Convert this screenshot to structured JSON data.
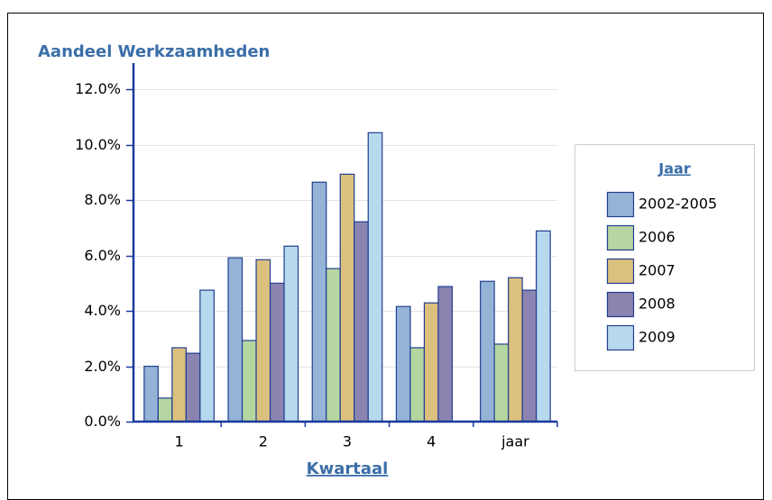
{
  "chart_data": {
    "type": "bar",
    "title": "Aandeel Werkzaamheden",
    "x_label": "Kwartaal",
    "legend_title": "Jaar",
    "legend": "right",
    "grid": true,
    "categories": [
      "1",
      "2",
      "3",
      "4",
      "jaar"
    ],
    "ylim": [
      0,
      12.5
    ],
    "yticks": [
      {
        "value": 0,
        "label": "0.0%"
      },
      {
        "value": 2,
        "label": "2.0%"
      },
      {
        "value": 4,
        "label": "4.0%"
      },
      {
        "value": 6,
        "label": "6.0%"
      },
      {
        "value": 8,
        "label": "8.0%"
      },
      {
        "value": 10,
        "label": "10.0%"
      },
      {
        "value": 12,
        "label": "12.0%"
      }
    ],
    "series": [
      {
        "name": "2002-2005",
        "color": "#95b3d7",
        "values": [
          2.0,
          5.92,
          8.65,
          4.16,
          5.07
        ]
      },
      {
        "name": "2006",
        "color": "#b5d6a0",
        "values": [
          0.85,
          2.93,
          5.53,
          2.67,
          2.8
        ]
      },
      {
        "name": "2007",
        "color": "#dcc07e",
        "values": [
          2.67,
          5.85,
          8.94,
          4.29,
          5.2
        ]
      },
      {
        "name": "2008",
        "color": "#8b84b0",
        "values": [
          2.47,
          5.0,
          7.22,
          4.88,
          4.75
        ]
      },
      {
        "name": "2009",
        "color": "#b7d9ee",
        "values": [
          4.75,
          6.34,
          10.44,
          null,
          6.89
        ]
      }
    ]
  }
}
